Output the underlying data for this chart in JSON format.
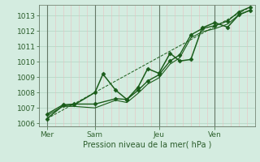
{
  "background_color": "#d4ece0",
  "grid_color_h": "#b8d8c8",
  "grid_color_v": "#e8c0c0",
  "vline_color": "#667766",
  "line_color": "#1a5c1a",
  "ylabel": "Pression niveau de la mer( hPa )",
  "ylim": [
    1005.8,
    1013.7
  ],
  "yticks": [
    1006,
    1007,
    1008,
    1009,
    1010,
    1011,
    1012,
    1013
  ],
  "xtick_labels": [
    "Mer",
    "Sam",
    "Jeu",
    "Ven"
  ],
  "xtick_positions": [
    0.5,
    3.5,
    7.5,
    11.0
  ],
  "vline_positions": [
    0.5,
    3.5,
    7.5,
    11.0
  ],
  "xlim": [
    0,
    13.5
  ],
  "series": [
    {
      "name": "wiggly_main",
      "x": [
        0.5,
        1.5,
        2.2,
        3.5,
        4.0,
        4.8,
        5.5,
        6.2,
        6.8,
        7.5,
        8.2,
        8.8,
        9.5,
        10.2,
        11.0,
        11.8,
        12.5,
        13.2
      ],
      "y": [
        1006.3,
        1007.15,
        1007.2,
        1008.0,
        1009.2,
        1008.15,
        1007.55,
        1008.35,
        1009.55,
        1009.25,
        1010.55,
        1010.05,
        1010.15,
        1012.2,
        1012.55,
        1012.25,
        1013.05,
        1013.35
      ],
      "marker": "D",
      "markersize": 2.5,
      "linewidth": 1.1,
      "linestyle": "-"
    },
    {
      "name": "smooth_upper",
      "x": [
        0.5,
        1.5,
        2.2,
        3.5,
        4.8,
        5.5,
        6.2,
        6.8,
        7.5,
        8.2,
        8.8,
        9.5,
        10.2,
        11.0,
        11.8,
        12.5,
        13.2
      ],
      "y": [
        1006.6,
        1007.2,
        1007.25,
        1007.25,
        1007.6,
        1007.55,
        1008.15,
        1008.75,
        1009.15,
        1010.05,
        1010.45,
        1011.75,
        1012.15,
        1012.35,
        1012.65,
        1013.25,
        1013.55
      ],
      "marker": "D",
      "markersize": 2.5,
      "linewidth": 1.0,
      "linestyle": "-"
    },
    {
      "name": "smooth_lower",
      "x": [
        0.5,
        1.5,
        2.2,
        3.5,
        4.8,
        5.5,
        6.2,
        6.8,
        7.5,
        8.2,
        8.8,
        9.5,
        10.2,
        11.0,
        11.8,
        12.5,
        13.2
      ],
      "y": [
        1006.5,
        1007.1,
        1007.1,
        1007.0,
        1007.5,
        1007.35,
        1007.95,
        1008.55,
        1008.95,
        1009.85,
        1010.25,
        1011.55,
        1011.95,
        1012.15,
        1012.45,
        1013.05,
        1013.35
      ],
      "marker": null,
      "markersize": 0,
      "linewidth": 0.8,
      "linestyle": "-"
    },
    {
      "name": "trend_line",
      "x": [
        0.5,
        13.2
      ],
      "y": [
        1006.3,
        1013.55
      ],
      "marker": null,
      "markersize": 0,
      "linewidth": 0.7,
      "linestyle": "--"
    }
  ]
}
